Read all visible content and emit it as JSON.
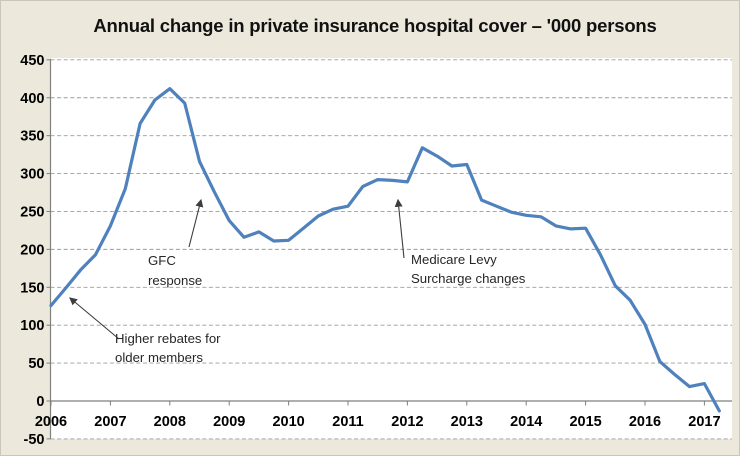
{
  "chart_data": {
    "type": "line",
    "title": "Annual change in private insurance hospital cover – '000 persons",
    "series_name": "Annual change in private insurance hospital cover ('000 persons)",
    "x_start": 2006.0,
    "x_step": 0.25,
    "values": [
      126,
      149,
      173,
      193,
      231,
      280,
      366,
      397,
      412,
      393,
      316,
      276,
      238,
      216,
      223,
      211,
      212,
      228,
      244,
      253,
      257,
      283,
      292,
      291,
      289,
      334,
      323,
      310,
      312,
      265,
      257,
      249,
      245,
      243,
      231,
      227,
      228,
      193,
      152,
      133,
      101,
      52,
      35,
      19,
      23,
      -13
    ],
    "x_tick_labels": [
      "2006",
      "2007",
      "2008",
      "2009",
      "2010",
      "2011",
      "2012",
      "2013",
      "2014",
      "2015",
      "2016",
      "2017"
    ],
    "y_ticks": [
      450,
      400,
      350,
      300,
      250,
      200,
      150,
      100,
      50,
      0,
      -50
    ],
    "ylim": [
      -50,
      450
    ],
    "xlim": [
      2006,
      2017.45
    ],
    "grid": "horizontal-dashed",
    "legend": "none",
    "line_color": "#4f81bd",
    "background_color": "#ece9dc",
    "plot_background_color": "#ffffff",
    "gridline_color": "#9b9b9b",
    "axis_color": "#7f7f7f",
    "annotation_color": "#262626",
    "annotations": [
      {
        "id": "higher-rebates",
        "lines": [
          "Higher rebates for",
          "older members"
        ],
        "text_x": 114,
        "text_y": 342,
        "line_height": 19,
        "arrow": {
          "from": [
            118,
            338
          ],
          "to": [
            69,
            297
          ]
        }
      },
      {
        "id": "gfc-response",
        "lines": [
          "GFC",
          "response"
        ],
        "text_x": 147,
        "text_y": 264,
        "line_height": 20,
        "arrow": {
          "from": [
            188,
            246
          ],
          "to": [
            200,
            199
          ]
        }
      },
      {
        "id": "medicare-levy",
        "lines": [
          "Medicare Levy",
          "Surcharge changes"
        ],
        "text_x": 410,
        "text_y": 263,
        "line_height": 19,
        "arrow": {
          "from": [
            403,
            257
          ],
          "to": [
            397,
            199
          ]
        }
      }
    ]
  }
}
